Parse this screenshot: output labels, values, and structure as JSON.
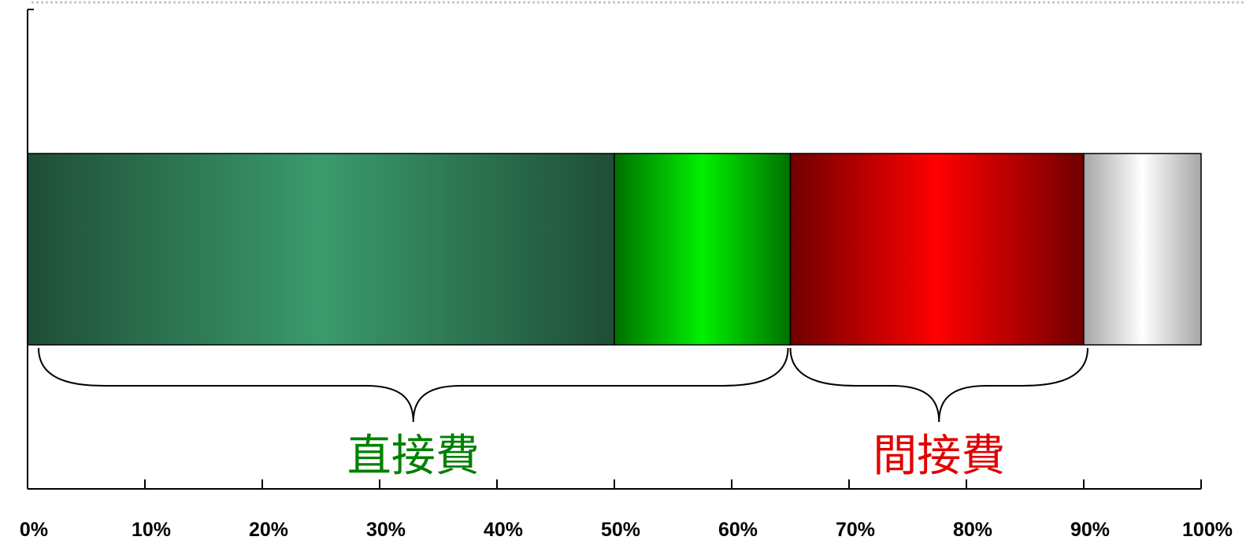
{
  "chart_data": {
    "type": "bar",
    "orientation": "horizontal",
    "stacked": true,
    "percent": true,
    "segments": [
      {
        "start": 0,
        "end": 50,
        "colors": {
          "edge": "#1f4e37",
          "center": "#3a9b6c"
        }
      },
      {
        "start": 50,
        "end": 65,
        "colors": {
          "edge": "#007000",
          "center": "#00f000"
        }
      },
      {
        "start": 65,
        "end": 90,
        "colors": {
          "edge": "#700000",
          "center": "#ff0000"
        }
      },
      {
        "start": 90,
        "end": 100,
        "colors": {
          "edge": "#a6a6a6",
          "center": "#ffffff"
        }
      }
    ],
    "xlim": [
      0,
      100
    ],
    "xticks": [
      0,
      10,
      20,
      30,
      40,
      50,
      60,
      70,
      80,
      90,
      100
    ],
    "tick_labels": [
      "0%",
      "10%",
      "20%",
      "30%",
      "40%",
      "50%",
      "60%",
      "70%",
      "80%",
      "90%",
      "100%"
    ],
    "groups": [
      {
        "label": "直接費",
        "start": 0,
        "end": 65,
        "color": "#008000"
      },
      {
        "label": "間接費",
        "start": 65,
        "end": 90,
        "color": "#e00000"
      }
    ],
    "grid": false,
    "legend": "none"
  }
}
